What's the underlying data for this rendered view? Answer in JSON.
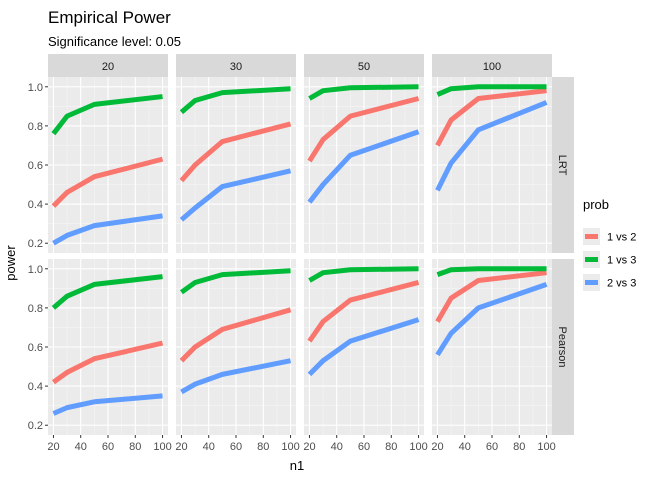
{
  "chart_data": {
    "type": "line",
    "title": "Empirical Power",
    "subtitle": "Significance level: 0.05",
    "xlabel": "n1",
    "ylabel": "power",
    "xlim": [
      16,
      104
    ],
    "ylim": [
      0.15,
      1.05
    ],
    "x_ticks": [
      20,
      40,
      60,
      80,
      100
    ],
    "y_ticks": [
      0.2,
      0.4,
      0.6,
      0.8,
      1.0
    ],
    "y_tick_labels": [
      "0.2",
      "0.4",
      "0.6",
      "0.8",
      "1.0"
    ],
    "grid": true,
    "legend_title": "prob",
    "legend_position": "right",
    "series_colors": {
      "1 vs 2": "#F8766D",
      "1 vs 3": "#00BA38",
      "2 vs 3": "#619CFF"
    },
    "columns": [
      "20",
      "30",
      "50",
      "100"
    ],
    "rows": [
      "LRT",
      "Pearson"
    ],
    "x": [
      20,
      30,
      50,
      100
    ],
    "panels": [
      {
        "row": "LRT",
        "col": "20",
        "series": [
          {
            "name": "1 vs 2",
            "values": [
              0.39,
              0.46,
              0.54,
              0.63
            ]
          },
          {
            "name": "1 vs 3",
            "values": [
              0.76,
              0.85,
              0.91,
              0.95
            ]
          },
          {
            "name": "2 vs 3",
            "values": [
              0.2,
              0.24,
              0.29,
              0.34
            ]
          }
        ]
      },
      {
        "row": "LRT",
        "col": "30",
        "series": [
          {
            "name": "1 vs 2",
            "values": [
              0.52,
              0.6,
              0.72,
              0.81
            ]
          },
          {
            "name": "1 vs 3",
            "values": [
              0.87,
              0.93,
              0.97,
              0.99
            ]
          },
          {
            "name": "2 vs 3",
            "values": [
              0.32,
              0.38,
              0.49,
              0.57
            ]
          }
        ]
      },
      {
        "row": "LRT",
        "col": "50",
        "series": [
          {
            "name": "1 vs 2",
            "values": [
              0.62,
              0.73,
              0.85,
              0.94
            ]
          },
          {
            "name": "1 vs 3",
            "values": [
              0.94,
              0.98,
              0.995,
              1.0
            ]
          },
          {
            "name": "2 vs 3",
            "values": [
              0.41,
              0.5,
              0.65,
              0.77
            ]
          }
        ]
      },
      {
        "row": "LRT",
        "col": "100",
        "series": [
          {
            "name": "1 vs 2",
            "values": [
              0.7,
              0.83,
              0.94,
              0.98
            ]
          },
          {
            "name": "1 vs 3",
            "values": [
              0.96,
              0.99,
              1.0,
              1.0
            ]
          },
          {
            "name": "2 vs 3",
            "values": [
              0.47,
              0.61,
              0.78,
              0.92
            ]
          }
        ]
      },
      {
        "row": "Pearson",
        "col": "20",
        "series": [
          {
            "name": "1 vs 2",
            "values": [
              0.42,
              0.47,
              0.54,
              0.62
            ]
          },
          {
            "name": "1 vs 3",
            "values": [
              0.8,
              0.86,
              0.92,
              0.96
            ]
          },
          {
            "name": "2 vs 3",
            "values": [
              0.26,
              0.29,
              0.32,
              0.35
            ]
          }
        ]
      },
      {
        "row": "Pearson",
        "col": "30",
        "series": [
          {
            "name": "1 vs 2",
            "values": [
              0.53,
              0.6,
              0.69,
              0.79
            ]
          },
          {
            "name": "1 vs 3",
            "values": [
              0.88,
              0.93,
              0.97,
              0.99
            ]
          },
          {
            "name": "2 vs 3",
            "values": [
              0.37,
              0.41,
              0.46,
              0.53
            ]
          }
        ]
      },
      {
        "row": "Pearson",
        "col": "50",
        "series": [
          {
            "name": "1 vs 2",
            "values": [
              0.63,
              0.73,
              0.84,
              0.93
            ]
          },
          {
            "name": "1 vs 3",
            "values": [
              0.94,
              0.98,
              0.995,
              1.0
            ]
          },
          {
            "name": "2 vs 3",
            "values": [
              0.46,
              0.53,
              0.63,
              0.74
            ]
          }
        ]
      },
      {
        "row": "Pearson",
        "col": "100",
        "series": [
          {
            "name": "1 vs 2",
            "values": [
              0.73,
              0.85,
              0.94,
              0.98
            ]
          },
          {
            "name": "1 vs 3",
            "values": [
              0.97,
              0.995,
              1.0,
              1.0
            ]
          },
          {
            "name": "2 vs 3",
            "values": [
              0.56,
              0.67,
              0.8,
              0.92
            ]
          }
        ]
      }
    ]
  }
}
